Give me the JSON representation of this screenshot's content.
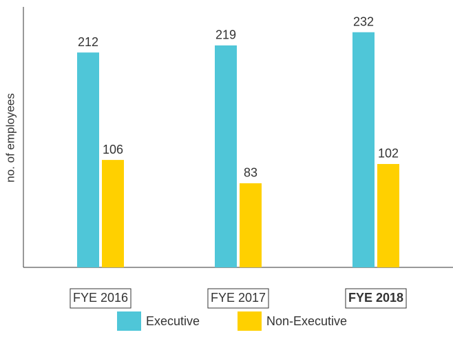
{
  "chart_data": {
    "type": "bar",
    "y_label": "no. of employees",
    "categories": [
      "FYE 2016",
      "FYE 2017",
      "FYE 2018"
    ],
    "bold_categories": [
      2
    ],
    "series": [
      {
        "name": "Executive",
        "color": "#4fc6d8",
        "values": [
          212,
          219,
          232
        ]
      },
      {
        "name": "Non-Executive",
        "color": "#ffd000",
        "values": [
          106,
          83,
          102
        ]
      }
    ],
    "ylim": [
      0,
      257
    ]
  }
}
